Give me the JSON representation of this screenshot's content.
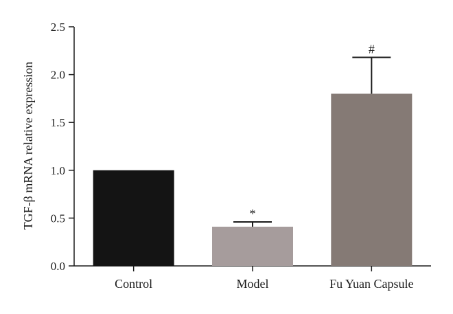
{
  "chart_data": {
    "type": "bar",
    "categories": [
      "Control",
      "Model",
      "Fu Yuan Capsule"
    ],
    "values": [
      1.0,
      0.41,
      1.8
    ],
    "errors": [
      0,
      0.05,
      0.38
    ],
    "annotations": [
      "",
      "*",
      "#"
    ],
    "colors": [
      "#141414",
      "#a69c9c",
      "#857a75"
    ],
    "ylabel": "TGF-β mRNA relative expression",
    "ylim": [
      0,
      2.5
    ],
    "yticks": [
      0.0,
      0.5,
      1.0,
      1.5,
      2.0,
      2.5
    ],
    "ytick_labels": [
      "0.0",
      "0.5",
      "1.0",
      "1.5",
      "2.0",
      "2.5"
    ],
    "grid": false
  }
}
